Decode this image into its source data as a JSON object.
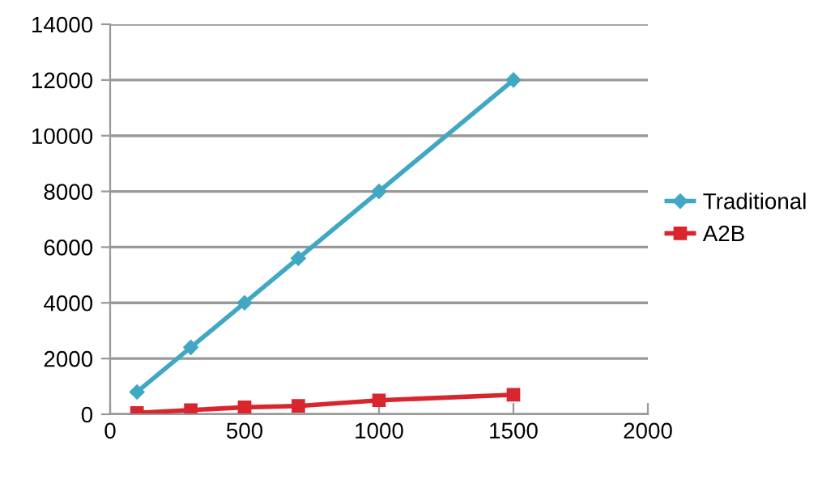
{
  "chart_data": {
    "type": "line",
    "x": [
      100,
      300,
      500,
      700,
      1000,
      1500
    ],
    "series": [
      {
        "name": "Traditional",
        "color": "#40a8c4",
        "marker": "diamond",
        "values": [
          800,
          2400,
          4000,
          5600,
          8000,
          12000
        ]
      },
      {
        "name": "A2B",
        "color": "#d9262e",
        "marker": "square",
        "values": [
          50,
          150,
          250,
          300,
          500,
          700
        ]
      }
    ],
    "xlim": [
      0,
      2000
    ],
    "xticks": [
      0,
      500,
      1000,
      1500,
      2000
    ],
    "ylim": [
      0,
      14000
    ],
    "yticks": [
      0,
      2000,
      4000,
      6000,
      8000,
      10000,
      12000,
      14000
    ],
    "grid": "y",
    "legend": "right"
  }
}
